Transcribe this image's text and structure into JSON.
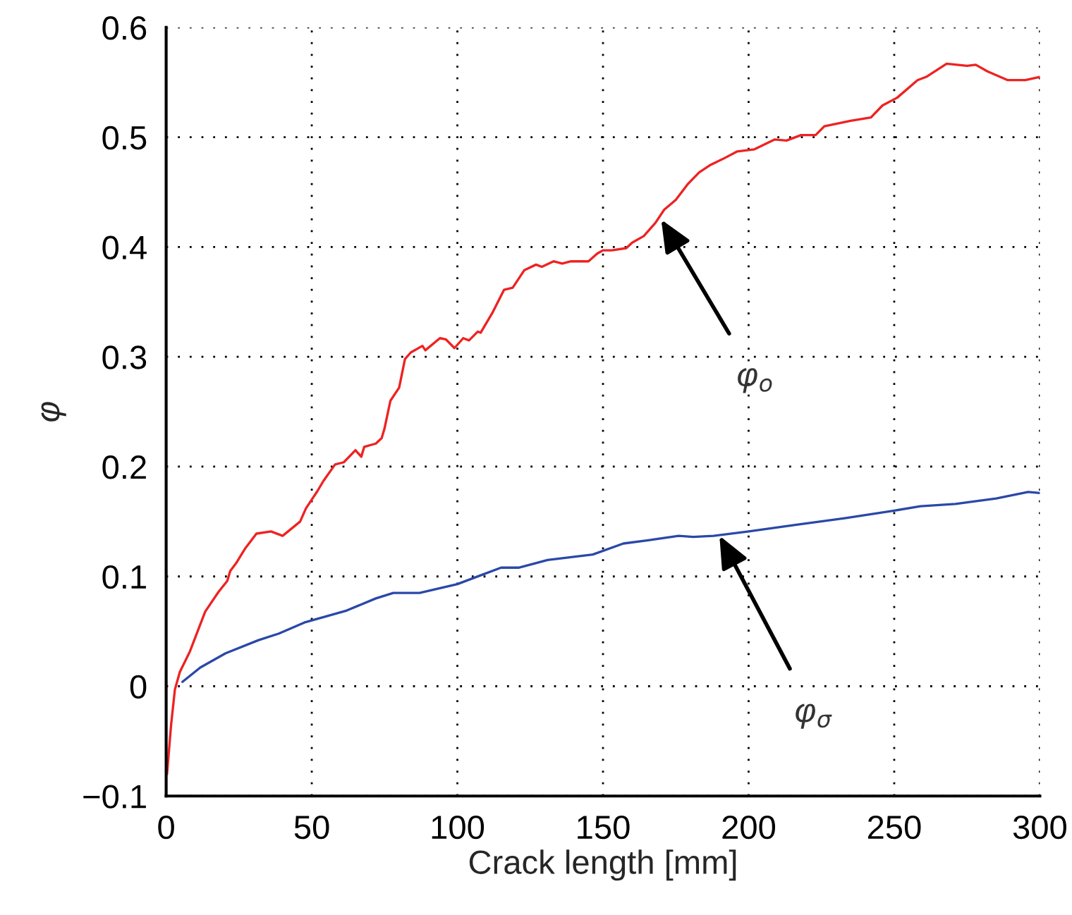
{
  "chart_data": {
    "type": "line",
    "xlabel": "Crack length [mm]",
    "ylabel": "φ",
    "xlim": [
      0,
      300
    ],
    "ylim": [
      -0.1,
      0.6
    ],
    "xticks": [
      0,
      50,
      100,
      150,
      200,
      250,
      300
    ],
    "yticks": [
      {
        "value": -0.1,
        "label": "−0.1"
      },
      0,
      0.1,
      0.2,
      0.3,
      0.4,
      0.5,
      0.6
    ],
    "grid": true,
    "line_style": "solid",
    "marker": "none",
    "series": [
      {
        "color": "#ee2222",
        "x": [
          0.3,
          1.7,
          3,
          4.7,
          8.2,
          13.4,
          18,
          21,
          22,
          24,
          27,
          31,
          36,
          40,
          46,
          48,
          52,
          54,
          58,
          61,
          65,
          67,
          68,
          72,
          74,
          75,
          77,
          80,
          82,
          84,
          88,
          89,
          94,
          96,
          99,
          102,
          104,
          107,
          108,
          112,
          116,
          119,
          123,
          127,
          129,
          133,
          136,
          139,
          145,
          148,
          150,
          153,
          158,
          160,
          164,
          168,
          171,
          175,
          179,
          183,
          187,
          191,
          196,
          202,
          209,
          213,
          218,
          223,
          226,
          235,
          242,
          246,
          251,
          258,
          261,
          268,
          275,
          278,
          282,
          289,
          295,
          300
        ],
        "values": [
          -0.08,
          -0.035,
          -0.003,
          0.013,
          0.032,
          0.068,
          0.086,
          0.096,
          0.105,
          0.112,
          0.125,
          0.139,
          0.141,
          0.137,
          0.15,
          0.162,
          0.178,
          0.187,
          0.202,
          0.204,
          0.215,
          0.209,
          0.218,
          0.221,
          0.226,
          0.235,
          0.26,
          0.272,
          0.298,
          0.304,
          0.31,
          0.306,
          0.317,
          0.316,
          0.308,
          0.317,
          0.315,
          0.323,
          0.322,
          0.34,
          0.361,
          0.363,
          0.379,
          0.384,
          0.382,
          0.387,
          0.385,
          0.387,
          0.387,
          0.394,
          0.397,
          0.397,
          0.399,
          0.404,
          0.41,
          0.422,
          0.434,
          0.443,
          0.457,
          0.468,
          0.475,
          0.48,
          0.487,
          0.489,
          0.498,
          0.497,
          0.502,
          0.502,
          0.51,
          0.515,
          0.518,
          0.529,
          0.536,
          0.552,
          0.555,
          0.567,
          0.565,
          0.566,
          0.56,
          0.552,
          0.552,
          0.555
        ]
      },
      {
        "color": "#2a48a8",
        "x": [
          5.6,
          11.7,
          20.4,
          31.7,
          38.7,
          47.4,
          62,
          72,
          78,
          87,
          100,
          108,
          115,
          121,
          131,
          146.5,
          157,
          165.6,
          176,
          181,
          188,
          200,
          216,
          233,
          250,
          259,
          271,
          285,
          296,
          300
        ],
        "values": [
          0.004,
          0.017,
          0.03,
          0.042,
          0.048,
          0.058,
          0.069,
          0.08,
          0.085,
          0.085,
          0.093,
          0.101,
          0.108,
          0.108,
          0.115,
          0.12,
          0.13,
          0.133,
          0.137,
          0.136,
          0.137,
          0.141,
          0.147,
          0.153,
          0.16,
          0.164,
          0.166,
          0.171,
          0.177,
          0.176
        ]
      }
    ],
    "annotations": [
      {
        "text": "φ$_{o}$",
        "x": 170,
        "y": 0.425
      },
      {
        "text": "φ$_{σ}$",
        "x": 190,
        "y": 0.137
      }
    ]
  }
}
